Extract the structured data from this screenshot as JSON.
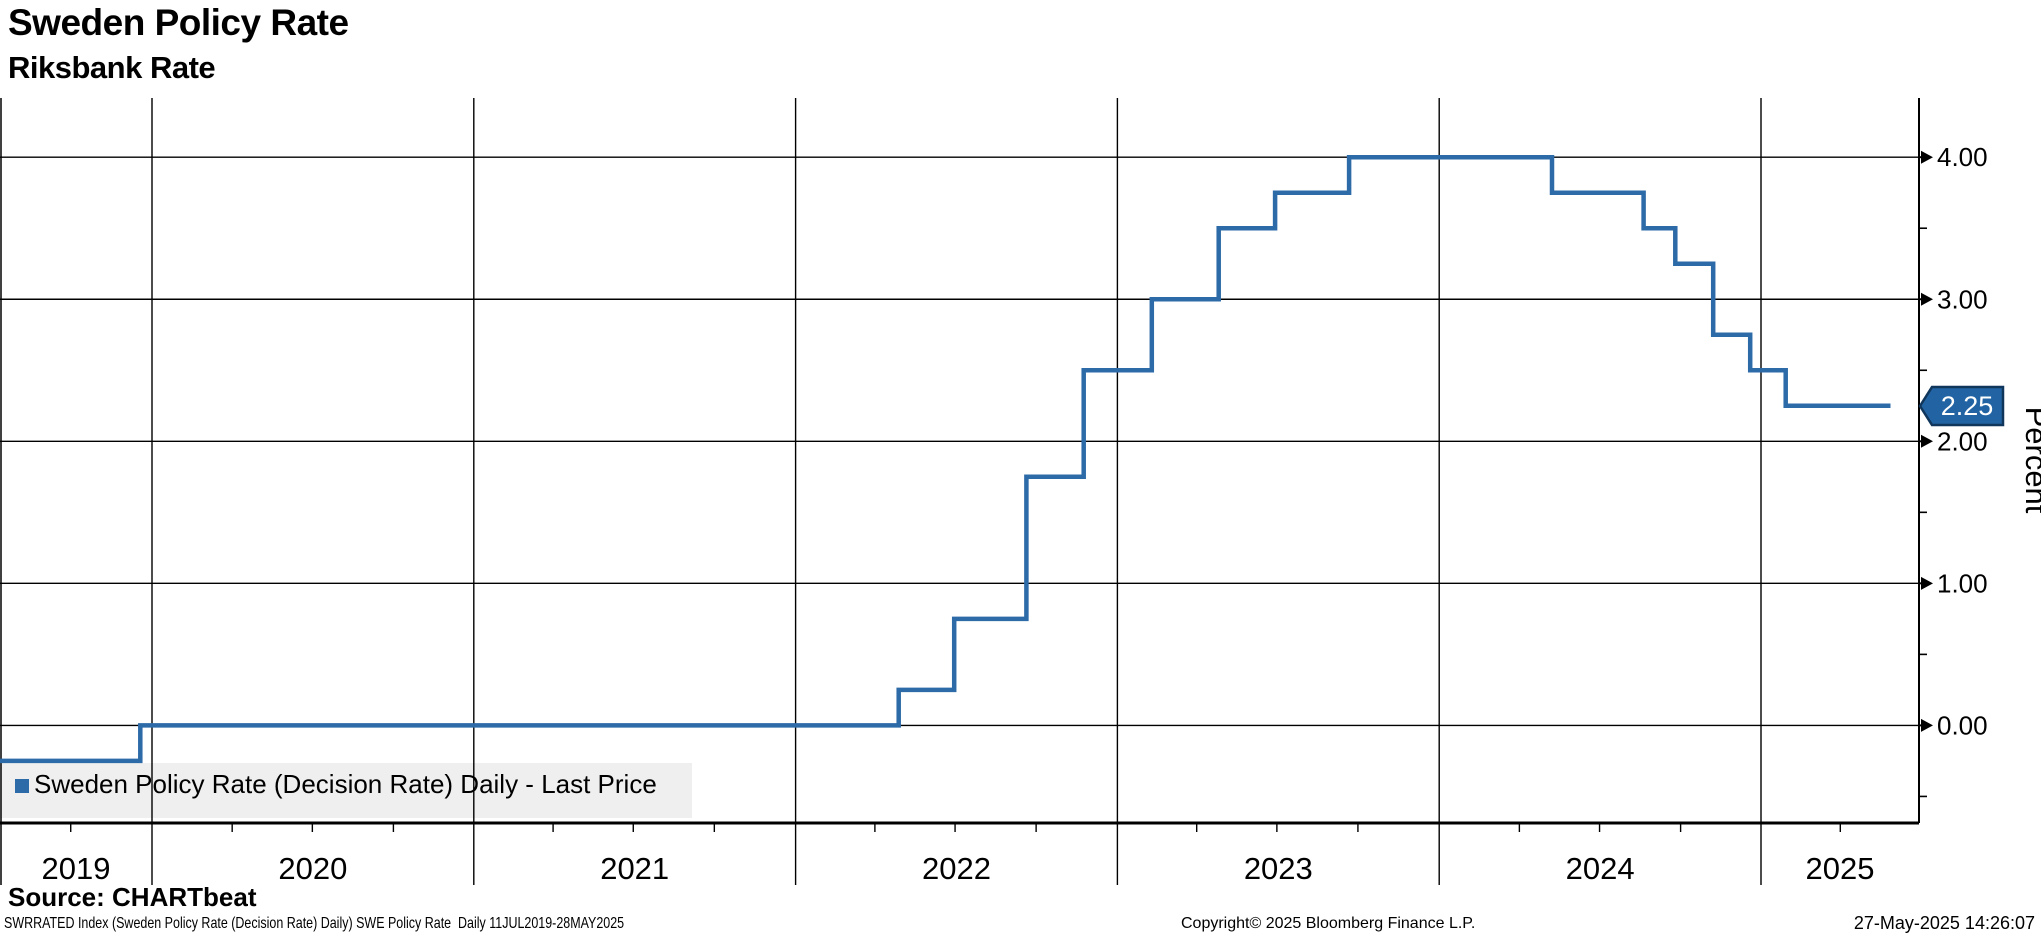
{
  "header": {
    "title": "Sweden Policy Rate",
    "subtitle": "Riksbank Rate"
  },
  "legend": {
    "label": "Sweden Policy Rate (Decision Rate) Daily - Last Price",
    "marker_color": "#2d6aa8"
  },
  "source_line": "Source: CHARTbeat",
  "footer": {
    "left": "SWRRATED Index (Sweden Policy Rate (Decision Rate) Daily) SWE Policy Rate  Daily 11JUL2019-28MAY2025",
    "center": "Copyright© 2025 Bloomberg Finance L.P.",
    "right": "27-May-2025 14:26:07"
  },
  "y_axis": {
    "title": "Percent",
    "major_ticks": [
      "4.00",
      "3.00",
      "2.00",
      "1.00",
      "0.00"
    ],
    "major_values": [
      4,
      3,
      2,
      1,
      0
    ],
    "minor_values": [
      3.5,
      2.5,
      1.5,
      0.5,
      -0.5
    ],
    "last_price": "2.25",
    "last_price_value": 2.25
  },
  "x_axis": {
    "year_labels": [
      "2019",
      "2020",
      "2021",
      "2022",
      "2023",
      "2024",
      "2025"
    ]
  },
  "colors": {
    "line": "#2d6aa8",
    "badge_fill": "#2264a3",
    "badge_border": "#10365c",
    "badge_text": "#ffffff",
    "grid": "#000000",
    "legend_box": "#efefef"
  },
  "chart_data": {
    "type": "line",
    "style": "step-after",
    "series_name": "Sweden Policy Rate (Decision Rate) Daily - Last Price",
    "unit": "Percent",
    "x_range": [
      "11JUL2019",
      "28MAY2025"
    ],
    "ylim": [
      -0.69,
      4.42
    ],
    "grid": true,
    "legend_position": "bottom-left",
    "steps": [
      {
        "date": "2019-07-11",
        "value": -0.25
      },
      {
        "date": "2019-12-19",
        "value": 0.0
      },
      {
        "date": "2022-04-28",
        "value": 0.25
      },
      {
        "date": "2022-06-30",
        "value": 0.75
      },
      {
        "date": "2022-09-20",
        "value": 1.75
      },
      {
        "date": "2022-11-24",
        "value": 2.5
      },
      {
        "date": "2023-02-09",
        "value": 3.0
      },
      {
        "date": "2023-04-26",
        "value": 3.5
      },
      {
        "date": "2023-06-29",
        "value": 3.75
      },
      {
        "date": "2023-09-21",
        "value": 4.0
      },
      {
        "date": "2024-05-08",
        "value": 3.75
      },
      {
        "date": "2024-08-20",
        "value": 3.5
      },
      {
        "date": "2024-09-25",
        "value": 3.25
      },
      {
        "date": "2024-11-07",
        "value": 2.75
      },
      {
        "date": "2024-12-19",
        "value": 2.5
      },
      {
        "date": "2025-01-29",
        "value": 2.25
      },
      {
        "date": "2025-05-28",
        "value": 2.25,
        "end": true
      }
    ]
  }
}
